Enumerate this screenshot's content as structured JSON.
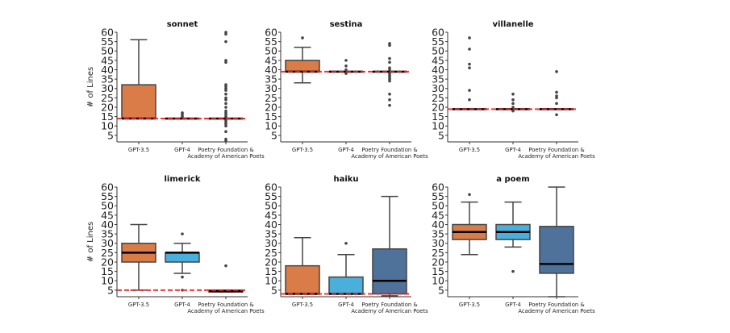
{
  "chart_data": [
    {
      "type": "box",
      "title": "sonnet",
      "ylabel": "# of Lines",
      "ylim": [
        1.5,
        60
      ],
      "yticks": [
        5,
        10,
        15,
        20,
        25,
        30,
        35,
        40,
        45,
        50,
        55,
        60
      ],
      "categories": [
        "GPT-3.5",
        "GPT-4",
        "Poetry Foundation &\nAcademy of American Poets"
      ],
      "reference_line": 14,
      "boxes": [
        {
          "q1": 14,
          "median": 14,
          "q3": 32,
          "whislo": 14,
          "whishi": 56,
          "fliers": [],
          "color": "#d97c48"
        },
        {
          "q1": 14,
          "median": 14,
          "q3": 14,
          "whislo": 14,
          "whishi": 14,
          "fliers": [
            15,
            16,
            17
          ],
          "color": "#4bafdb"
        },
        {
          "q1": 14,
          "median": 14,
          "q3": 14,
          "whislo": 14,
          "whishi": 14,
          "fliers": [
            2,
            3,
            7,
            10,
            11,
            12,
            13,
            15,
            16,
            17,
            18,
            20,
            22,
            24,
            25,
            27,
            29,
            30,
            31,
            32,
            44,
            45,
            55,
            59,
            60
          ],
          "color": "#4e7299"
        }
      ]
    },
    {
      "type": "box",
      "title": "sestina",
      "ylabel": "",
      "ylim": [
        1.5,
        60
      ],
      "yticks": [
        5,
        10,
        15,
        20,
        25,
        30,
        35,
        40,
        45,
        50,
        55,
        60
      ],
      "categories": [
        "GPT-3.5",
        "GPT-4",
        "Poetry Foundation &\nAcademy of American Poets"
      ],
      "reference_line": 39,
      "boxes": [
        {
          "q1": 39,
          "median": 39,
          "q3": 45,
          "whislo": 33,
          "whishi": 52,
          "fliers": [
            57
          ],
          "color": "#d97c48"
        },
        {
          "q1": 39,
          "median": 39,
          "q3": 39,
          "whislo": 39,
          "whishi": 39,
          "fliers": [
            38,
            40,
            42,
            45
          ],
          "color": "#4bafdb"
        },
        {
          "q1": 39,
          "median": 39,
          "q3": 39,
          "whislo": 39,
          "whishi": 39,
          "fliers": [
            21,
            24,
            27,
            34,
            35,
            36,
            37,
            38,
            40,
            41,
            44,
            46,
            53,
            54
          ],
          "color": "#4e7299"
        }
      ]
    },
    {
      "type": "box",
      "title": "villanelle",
      "ylabel": "",
      "ylim": [
        1.5,
        60
      ],
      "yticks": [
        5,
        10,
        15,
        20,
        25,
        30,
        35,
        40,
        45,
        50,
        55,
        60
      ],
      "categories": [
        "GPT-3.5",
        "GPT-4",
        "Poetry Foundation &\nAcademy of American Poets"
      ],
      "reference_line": 19,
      "boxes": [
        {
          "q1": 19,
          "median": 19,
          "q3": 19,
          "whislo": 19,
          "whishi": 19,
          "fliers": [
            24,
            29,
            41,
            43,
            51,
            57
          ],
          "color": "#d97c48"
        },
        {
          "q1": 19,
          "median": 19,
          "q3": 19,
          "whislo": 19,
          "whishi": 19,
          "fliers": [
            18,
            20,
            22,
            24,
            27
          ],
          "color": "#4bafdb"
        },
        {
          "q1": 19,
          "median": 19,
          "q3": 19,
          "whislo": 19,
          "whishi": 19,
          "fliers": [
            16,
            22,
            25,
            26,
            28,
            39
          ],
          "color": "#4e7299"
        }
      ]
    },
    {
      "type": "box",
      "title": "limerick",
      "ylabel": "# of Lines",
      "ylim": [
        1.5,
        60
      ],
      "yticks": [
        5,
        10,
        15,
        20,
        25,
        30,
        35,
        40,
        45,
        50,
        55,
        60
      ],
      "categories": [
        "GPT-3.5",
        "GPT-4",
        "Poetry Foundation &\nAcademy of American Poets"
      ],
      "reference_line": 5,
      "boxes": [
        {
          "q1": 20,
          "median": 25,
          "q3": 30,
          "whislo": 5,
          "whishi": 40,
          "fliers": [],
          "color": "#d97c48"
        },
        {
          "q1": 20,
          "median": 25,
          "q3": 25,
          "whislo": 14,
          "whishi": 30,
          "fliers": [
            5,
            12,
            35
          ],
          "color": "#4bafdb"
        },
        {
          "q1": 4,
          "median": 4.5,
          "q3": 5,
          "whislo": 4,
          "whishi": 5,
          "fliers": [
            18
          ],
          "color": "#4e7299"
        }
      ]
    },
    {
      "type": "box",
      "title": "haiku",
      "ylabel": "",
      "ylim": [
        1.5,
        60
      ],
      "yticks": [
        5,
        10,
        15,
        20,
        25,
        30,
        35,
        40,
        45,
        50,
        55,
        60
      ],
      "categories": [
        "GPT-3.5",
        "GPT-4",
        "Poetry Foundation &\nAcademy of American Poets"
      ],
      "reference_line": 3,
      "boxes": [
        {
          "q1": 3,
          "median": 3,
          "q3": 18,
          "whislo": 3,
          "whishi": 33,
          "fliers": [],
          "color": "#d97c48"
        },
        {
          "q1": 3,
          "median": 3,
          "q3": 12,
          "whislo": 3,
          "whishi": 24,
          "fliers": [
            30
          ],
          "color": "#4bafdb"
        },
        {
          "q1": 3,
          "median": 10,
          "q3": 27,
          "whislo": 2,
          "whishi": 55,
          "fliers": [],
          "color": "#4e7299"
        }
      ]
    },
    {
      "type": "box",
      "title": "a poem",
      "ylabel": "",
      "ylim": [
        1.5,
        60
      ],
      "yticks": [
        5,
        10,
        15,
        20,
        25,
        30,
        35,
        40,
        45,
        50,
        55,
        60
      ],
      "categories": [
        "GPT-3.5",
        "GPT-4",
        "Poetry Foundation &\nAcademy of American Poets"
      ],
      "reference_line": null,
      "boxes": [
        {
          "q1": 32,
          "median": 36,
          "q3": 40,
          "whislo": 24,
          "whishi": 52,
          "fliers": [
            56
          ],
          "color": "#d97c48"
        },
        {
          "q1": 32,
          "median": 36,
          "q3": 40,
          "whislo": 28,
          "whishi": 52,
          "fliers": [
            15
          ],
          "color": "#4bafdb"
        },
        {
          "q1": 14,
          "median": 19,
          "q3": 39,
          "whislo": 1.5,
          "whishi": 60,
          "fliers": [],
          "color": "#4e7299"
        }
      ]
    }
  ],
  "reference_line_color": "#ee2222"
}
